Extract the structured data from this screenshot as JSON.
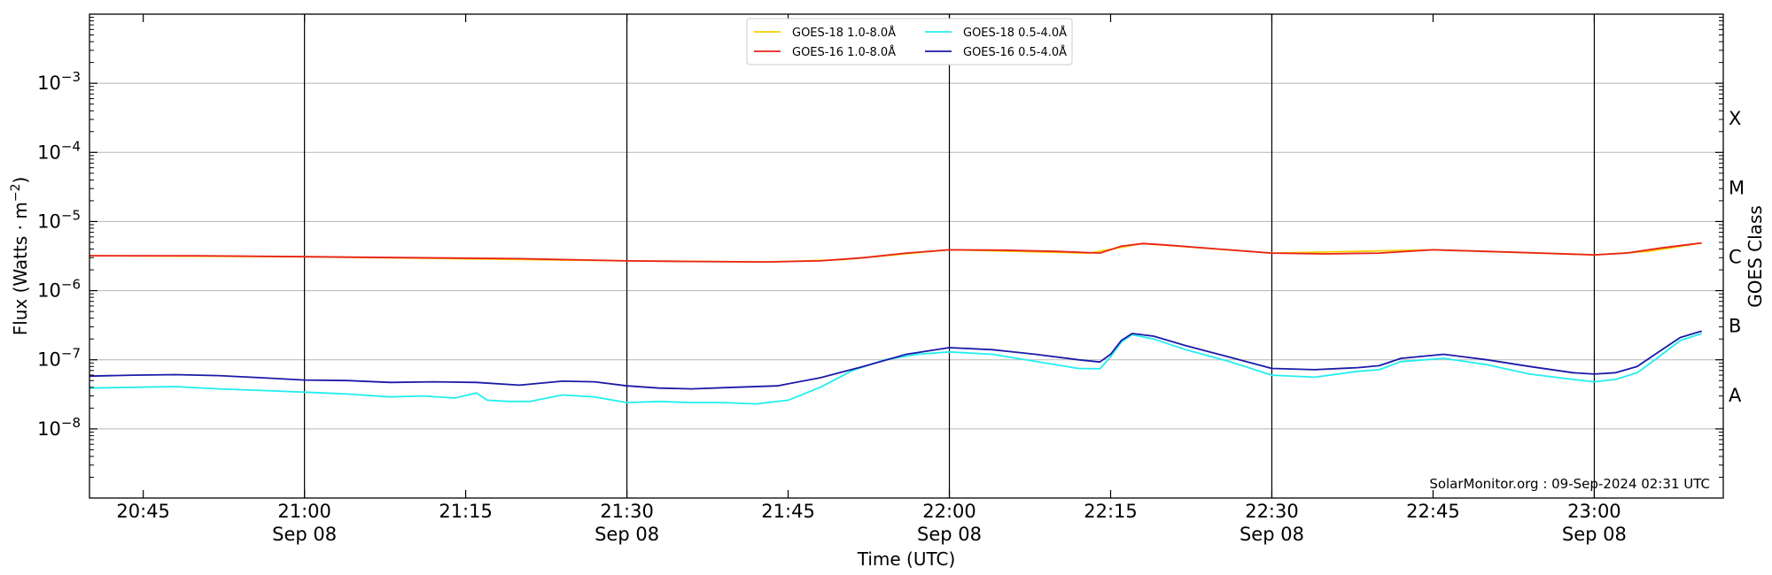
{
  "chart_data": {
    "type": "line",
    "title": "",
    "xlabel": "Time (UTC)",
    "ylabel": "Flux (Watts · m⁻²)",
    "y2label": "GOES Class",
    "yscale": "log",
    "xlim": [
      "20:40",
      "23:12"
    ],
    "ylim": [
      1e-09,
      0.01
    ],
    "grid": "horizontal at y decades",
    "legend_placement": "top-center",
    "x_ticks": [
      {
        "time": "20:45",
        "label": "20:45",
        "sublabel": ""
      },
      {
        "time": "21:00",
        "label": "21:00",
        "sublabel": "Sep 08"
      },
      {
        "time": "21:15",
        "label": "21:15",
        "sublabel": ""
      },
      {
        "time": "21:30",
        "label": "21:30",
        "sublabel": "Sep 08"
      },
      {
        "time": "21:45",
        "label": "21:45",
        "sublabel": ""
      },
      {
        "time": "22:00",
        "label": "22:00",
        "sublabel": "Sep 08"
      },
      {
        "time": "22:15",
        "label": "22:15",
        "sublabel": ""
      },
      {
        "time": "22:30",
        "label": "22:30",
        "sublabel": "Sep 08"
      },
      {
        "time": "22:45",
        "label": "22:45",
        "sublabel": ""
      },
      {
        "time": "23:00",
        "label": "23:00",
        "sublabel": "Sep 08"
      }
    ],
    "vertical_lines": [
      "21:00",
      "21:30",
      "22:00",
      "22:30",
      "23:00"
    ],
    "y_ticks": [
      {
        "value": 1e-08,
        "exp": "−8"
      },
      {
        "value": 1e-07,
        "exp": "−7"
      },
      {
        "value": 1e-06,
        "exp": "−6"
      },
      {
        "value": 1e-05,
        "exp": "−5"
      },
      {
        "value": 0.0001,
        "exp": "−4"
      },
      {
        "value": 0.001,
        "exp": "−3"
      }
    ],
    "tick_base": "10",
    "goes_classes": [
      {
        "label": "A",
        "value": 3.16e-08
      },
      {
        "label": "B",
        "value": 3.16e-07
      },
      {
        "label": "C",
        "value": 3.16e-06
      },
      {
        "label": "M",
        "value": 3.16e-05
      },
      {
        "label": "X",
        "value": 0.000316
      }
    ],
    "series": [
      {
        "name": "GOES-18 1.0-8.0Å",
        "color": "#f5d000",
        "legend_order": 0,
        "x": [
          "20:40",
          "21:00",
          "21:30",
          "21:43",
          "21:50",
          "22:00",
          "22:13",
          "22:18",
          "22:30",
          "22:45",
          "23:00",
          "23:05",
          "23:10"
        ],
        "values": [
          3.2e-06,
          3.1e-06,
          2.7e-06,
          2.6e-06,
          2.8e-06,
          3.9e-06,
          3.5e-06,
          4.8e-06,
          3.5e-06,
          3.9e-06,
          3.3e-06,
          3.7e-06,
          4.9e-06
        ]
      },
      {
        "name": "GOES-16 1.0-8.0Å",
        "color": "#e8221c",
        "legend_order": 1,
        "x": [
          "20:40",
          "20:50",
          "21:00",
          "21:10",
          "21:20",
          "21:30",
          "21:35",
          "21:43",
          "21:48",
          "21:52",
          "21:56",
          "22:00",
          "22:05",
          "22:10",
          "22:14",
          "22:16",
          "22:18",
          "22:20",
          "22:25",
          "22:30",
          "22:35",
          "22:40",
          "22:45",
          "22:50",
          "22:55",
          "23:00",
          "23:03",
          "23:06",
          "23:10"
        ],
        "values": [
          3.2e-06,
          3.2e-06,
          3.1e-06,
          3e-06,
          2.9e-06,
          2.7e-06,
          2.65e-06,
          2.6e-06,
          2.7e-06,
          3e-06,
          3.5e-06,
          3.9e-06,
          3.85e-06,
          3.7e-06,
          3.5e-06,
          4.4e-06,
          4.8e-06,
          4.6e-06,
          4e-06,
          3.5e-06,
          3.4e-06,
          3.5e-06,
          3.9e-06,
          3.7e-06,
          3.5e-06,
          3.3e-06,
          3.5e-06,
          4.1e-06,
          4.9e-06
        ]
      },
      {
        "name": "GOES-18 0.5-4.0Å",
        "color": "#22eeee",
        "legend_order": 2,
        "x": [
          "20:40",
          "20:44",
          "20:48",
          "20:52",
          "20:56",
          "21:00",
          "21:04",
          "21:08",
          "21:11",
          "21:14",
          "21:16",
          "21:17",
          "21:19",
          "21:21",
          "21:24",
          "21:27",
          "21:30",
          "21:33",
          "21:36",
          "21:39",
          "21:42",
          "21:45",
          "21:48",
          "21:51",
          "21:54",
          "21:57",
          "22:00",
          "22:04",
          "22:08",
          "22:12",
          "22:14",
          "22:15",
          "22:16",
          "22:17",
          "22:19",
          "22:22",
          "22:26",
          "22:30",
          "22:34",
          "22:38",
          "22:40",
          "22:42",
          "22:46",
          "22:50",
          "22:54",
          "22:58",
          "23:00",
          "23:02",
          "23:04",
          "23:06",
          "23:08",
          "23:10"
        ],
        "values": [
          3.9e-08,
          4e-08,
          4.1e-08,
          3.8e-08,
          3.6e-08,
          3.4e-08,
          3.2e-08,
          2.9e-08,
          3e-08,
          2.8e-08,
          3.3e-08,
          2.6e-08,
          2.5e-08,
          2.5e-08,
          3.1e-08,
          2.9e-08,
          2.4e-08,
          2.5e-08,
          2.4e-08,
          2.4e-08,
          2.3e-08,
          2.6e-08,
          4e-08,
          7e-08,
          1e-07,
          1.2e-07,
          1.3e-07,
          1.2e-07,
          9.5e-08,
          7.5e-08,
          7.4e-08,
          1.1e-07,
          1.8e-07,
          2.3e-07,
          2e-07,
          1.4e-07,
          9.5e-08,
          6e-08,
          5.6e-08,
          6.8e-08,
          7.2e-08,
          9.4e-08,
          1.05e-07,
          8.5e-08,
          6.2e-08,
          5.2e-08,
          4.8e-08,
          5.2e-08,
          6.5e-08,
          1.1e-07,
          1.9e-07,
          2.4e-07
        ]
      },
      {
        "name": "GOES-16 0.5-4.0Å",
        "color": "#1a1aa8",
        "legend_order": 3,
        "x": [
          "20:40",
          "20:44",
          "20:48",
          "20:52",
          "20:56",
          "21:00",
          "21:04",
          "21:08",
          "21:12",
          "21:16",
          "21:20",
          "21:24",
          "21:27",
          "21:30",
          "21:33",
          "21:36",
          "21:40",
          "21:44",
          "21:48",
          "21:52",
          "21:56",
          "22:00",
          "22:04",
          "22:08",
          "22:12",
          "22:14",
          "22:15",
          "22:16",
          "22:17",
          "22:19",
          "22:22",
          "22:26",
          "22:30",
          "22:34",
          "22:38",
          "22:40",
          "22:42",
          "22:46",
          "22:50",
          "22:54",
          "22:58",
          "23:00",
          "23:02",
          "23:04",
          "23:06",
          "23:08",
          "23:10"
        ],
        "values": [
          5.8e-08,
          6e-08,
          6.1e-08,
          5.9e-08,
          5.5e-08,
          5.1e-08,
          5e-08,
          4.7e-08,
          4.8e-08,
          4.7e-08,
          4.3e-08,
          4.9e-08,
          4.8e-08,
          4.2e-08,
          3.9e-08,
          3.8e-08,
          4e-08,
          4.2e-08,
          5.5e-08,
          8e-08,
          1.2e-07,
          1.5e-07,
          1.4e-07,
          1.2e-07,
          1e-07,
          9.3e-08,
          1.2e-07,
          1.9e-07,
          2.4e-07,
          2.2e-07,
          1.6e-07,
          1.1e-07,
          7.5e-08,
          7.2e-08,
          7.7e-08,
          8.2e-08,
          1.05e-07,
          1.2e-07,
          1e-07,
          8e-08,
          6.5e-08,
          6.2e-08,
          6.5e-08,
          8e-08,
          1.3e-07,
          2.1e-07,
          2.6e-07
        ]
      }
    ],
    "annotation": "SolarMonitor.org : 09-Sep-2024 02:31 UTC"
  }
}
